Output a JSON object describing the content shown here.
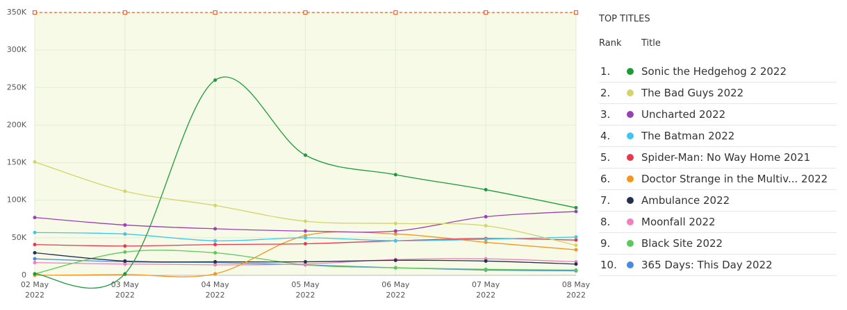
{
  "chart_data": {
    "type": "line",
    "categories": [
      "02 May 2022",
      "03 May 2022",
      "04 May 2022",
      "05 May 2022",
      "06 May 2022",
      "07 May 2022",
      "08 May 2022"
    ],
    "ylim": [
      0,
      350000
    ],
    "yticks": [
      0,
      {
        "value": 50000,
        "label": "50K"
      },
      {
        "value": 100000,
        "label": "100K"
      },
      {
        "value": 150000,
        "label": "150K"
      },
      {
        "value": 200000,
        "label": "200K"
      },
      {
        "value": 250000,
        "label": "250K"
      },
      {
        "value": 300000,
        "label": "300K"
      },
      {
        "value": 350000,
        "label": "350K"
      }
    ],
    "grid": true,
    "reference_line": {
      "value": 350000,
      "color": "#e8622a"
    },
    "series": [
      {
        "name": "Sonic the Hedgehog 2 2022",
        "color": "#1a9c3a",
        "values": [
          2000,
          2000,
          260000,
          160000,
          134000,
          114000,
          90000
        ]
      },
      {
        "name": "The Bad Guys 2022",
        "color": "#d4d46a",
        "values": [
          151000,
          112000,
          93000,
          72000,
          69000,
          66000,
          40000
        ]
      },
      {
        "name": "Uncharted 2022",
        "color": "#9b3fb5",
        "values": [
          77000,
          67000,
          62000,
          59000,
          59000,
          78000,
          85000
        ]
      },
      {
        "name": "The Batman 2022",
        "color": "#3dc7ee",
        "values": [
          57000,
          55000,
          46000,
          50000,
          46000,
          48000,
          51000
        ]
      },
      {
        "name": "Spider-Man: No Way Home 2021",
        "color": "#e8384f",
        "values": [
          41000,
          39000,
          41000,
          42000,
          46000,
          49000,
          47000
        ]
      },
      {
        "name": "Doctor Strange in the Multiv... 2022",
        "color": "#f7941d",
        "values": [
          0,
          1000,
          2000,
          53000,
          55000,
          44000,
          34000
        ]
      },
      {
        "name": "Ambulance 2022",
        "color": "#243050",
        "values": [
          30000,
          19000,
          18000,
          18000,
          20000,
          19000,
          15000
        ]
      },
      {
        "name": "Moonfall 2022",
        "color": "#f07fbf",
        "values": [
          17000,
          15000,
          14000,
          15000,
          21000,
          22000,
          18000
        ]
      },
      {
        "name": "Black Site 2022",
        "color": "#5cc85c",
        "values": [
          2000,
          31000,
          30000,
          14000,
          10000,
          8000,
          7000
        ]
      },
      {
        "name": "365 Days: This Day 2022",
        "color": "#4a8be0",
        "values": [
          22000,
          18000,
          17000,
          14000,
          10000,
          7000,
          6000
        ]
      }
    ]
  },
  "top_titles": {
    "title": "TOP TITLES",
    "rank_header": "Rank",
    "title_header": "Title",
    "ranks": [
      "1.",
      "2.",
      "3.",
      "4.",
      "5.",
      "6.",
      "7.",
      "8.",
      "9.",
      "10."
    ]
  }
}
